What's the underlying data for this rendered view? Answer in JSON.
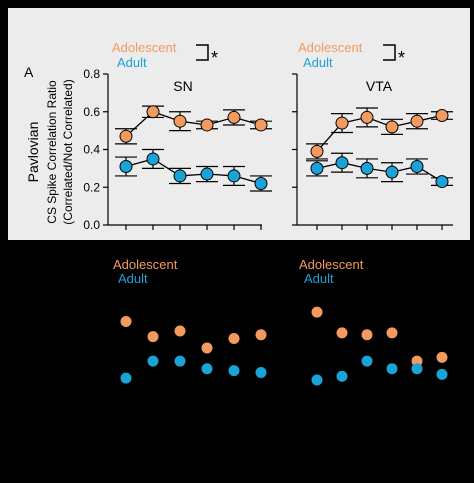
{
  "panel_label": "A",
  "y_label_outer": "Pavlovian",
  "y_label_line1": "CS Spike Correlation Ratio",
  "y_label_line2": "(Correlated/Not Correlated)",
  "legend_adolescent": "Adolescent",
  "legend_adult": "Adult",
  "significance_mark": "*",
  "colors": {
    "adolescent": "#f39b5e",
    "adult": "#1aa3d6",
    "panel_bg": "#ececec",
    "page_bg": "#000000",
    "axis": "#000000"
  },
  "chart_data": [
    {
      "type": "line",
      "title": "SN",
      "x": [
        1,
        2,
        3,
        4,
        5,
        6
      ],
      "ylim": [
        0.0,
        0.8
      ],
      "y_ticks": [
        "0.0",
        "0.2",
        "0.4",
        "0.6",
        "0.8"
      ],
      "series": [
        {
          "name": "Adolescent",
          "values": [
            0.47,
            0.6,
            0.55,
            0.53,
            0.57,
            0.53
          ],
          "errors": [
            0.04,
            0.03,
            0.05,
            0.02,
            0.04,
            0.02
          ]
        },
        {
          "name": "Adult",
          "values": [
            0.31,
            0.35,
            0.26,
            0.27,
            0.26,
            0.22
          ],
          "errors": [
            0.05,
            0.05,
            0.04,
            0.04,
            0.05,
            0.04
          ]
        }
      ]
    },
    {
      "type": "line",
      "title": "VTA",
      "x": [
        1,
        2,
        3,
        4,
        5,
        6
      ],
      "ylim": [
        0.0,
        0.8
      ],
      "y_ticks": [],
      "series": [
        {
          "name": "Adolescent",
          "values": [
            0.39,
            0.54,
            0.57,
            0.52,
            0.55,
            0.58
          ],
          "errors": [
            0.04,
            0.05,
            0.05,
            0.04,
            0.04,
            0.02
          ]
        },
        {
          "name": "Adult",
          "values": [
            0.3,
            0.33,
            0.3,
            0.28,
            0.31,
            0.23
          ],
          "errors": [
            0.04,
            0.05,
            0.05,
            0.05,
            0.04,
            0.02
          ]
        }
      ]
    },
    {
      "type": "scatter",
      "title": "",
      "x": [
        1,
        2,
        3,
        4,
        5,
        6
      ],
      "ylim": [
        0.0,
        0.8
      ],
      "series": [
        {
          "name": "Adolescent",
          "values": [
            0.58,
            0.5,
            0.53,
            0.44,
            0.49,
            0.51
          ]
        },
        {
          "name": "Adult",
          "values": [
            0.28,
            0.37,
            0.37,
            0.33,
            0.32,
            0.31
          ]
        }
      ]
    },
    {
      "type": "scatter",
      "title": "",
      "x": [
        1,
        2,
        3,
        4,
        5,
        6
      ],
      "ylim": [
        0.0,
        0.8
      ],
      "series": [
        {
          "name": "Adolescent",
          "values": [
            0.63,
            0.52,
            0.51,
            0.52,
            0.37,
            0.39
          ]
        },
        {
          "name": "Adult",
          "values": [
            0.27,
            0.29,
            0.37,
            0.33,
            0.33,
            0.3
          ]
        }
      ]
    }
  ]
}
